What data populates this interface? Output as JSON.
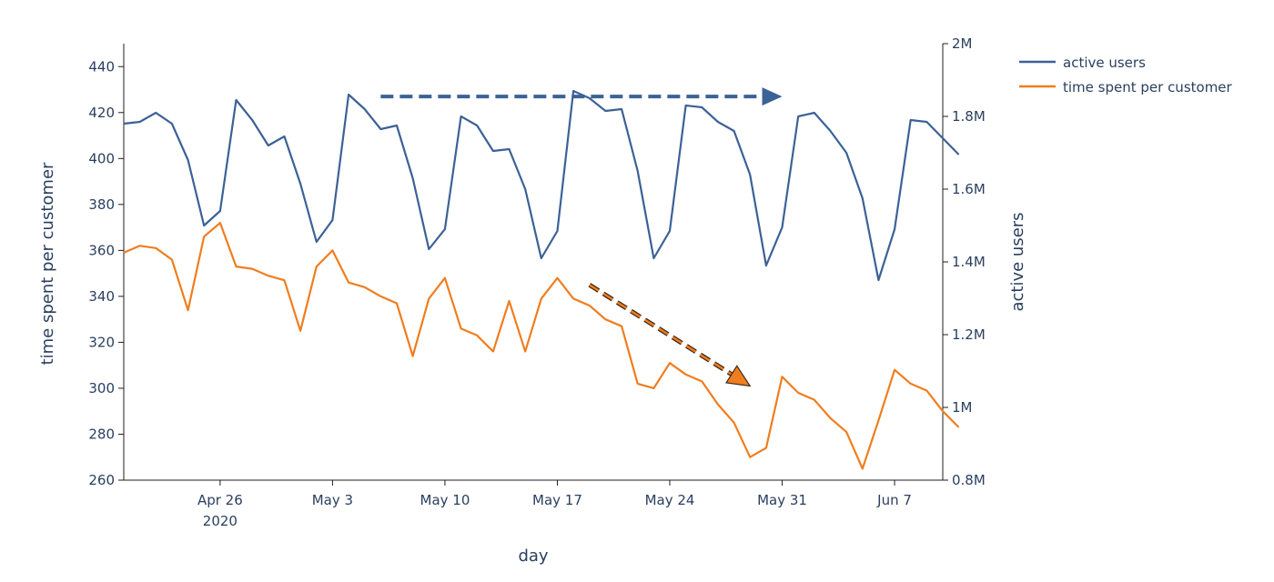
{
  "chart_data": {
    "type": "line",
    "xlabel": "day",
    "ylabel_left": "time spent per customer",
    "ylabel_right": "active users",
    "x_range": [
      "2020-04-20",
      "2020-06-10"
    ],
    "x_ticks": [
      {
        "date": "2020-04-26",
        "label": "Apr 26",
        "sublabel": "2020"
      },
      {
        "date": "2020-05-03",
        "label": "May 3",
        "sublabel": ""
      },
      {
        "date": "2020-05-10",
        "label": "May 10",
        "sublabel": ""
      },
      {
        "date": "2020-05-17",
        "label": "May 17",
        "sublabel": ""
      },
      {
        "date": "2020-05-24",
        "label": "May 24",
        "sublabel": ""
      },
      {
        "date": "2020-05-31",
        "label": "May 31",
        "sublabel": ""
      },
      {
        "date": "2020-06-07",
        "label": "Jun 7",
        "sublabel": ""
      }
    ],
    "y_left_range": [
      260,
      450
    ],
    "y_left_ticks": [
      260,
      280,
      300,
      320,
      340,
      360,
      380,
      400,
      420,
      440
    ],
    "y_right_range": [
      800000,
      2000000
    ],
    "y_right_ticks": [
      {
        "value": 800000,
        "label": "0.8M"
      },
      {
        "value": 1000000,
        "label": "1M"
      },
      {
        "value": 1200000,
        "label": "1.2M"
      },
      {
        "value": 1400000,
        "label": "1.4M"
      },
      {
        "value": 1600000,
        "label": "1.6M"
      },
      {
        "value": 1800000,
        "label": "1.8M"
      },
      {
        "value": 2000000,
        "label": "2M"
      }
    ],
    "grid": false,
    "legend_position": "top-right",
    "start_date": "2020-04-20",
    "series": [
      {
        "name": "active users",
        "axis": "right",
        "color": "#3c6196",
        "values": [
          1780000,
          1785000,
          1810000,
          1780000,
          1680000,
          1500000,
          1540000,
          1845000,
          1790000,
          1720000,
          1745000,
          1615000,
          1455000,
          1515000,
          1860000,
          1820000,
          1765000,
          1775000,
          1630000,
          1435000,
          1490000,
          1800000,
          1775000,
          1705000,
          1710000,
          1600000,
          1410000,
          1485000,
          1870000,
          1850000,
          1815000,
          1820000,
          1650000,
          1410000,
          1485000,
          1830000,
          1825000,
          1785000,
          1760000,
          1640000,
          1390000,
          1495000,
          1800000,
          1810000,
          1760000,
          1700000,
          1575000,
          1350000,
          1490000,
          1790000,
          1785000,
          1740000,
          1695000
        ]
      },
      {
        "name": "time spent per customer",
        "axis": "left",
        "color": "#f07d1e",
        "values": [
          359,
          362,
          361,
          356,
          334,
          366,
          372,
          353,
          352,
          349,
          347,
          325,
          353,
          360,
          346,
          344,
          340,
          337,
          314,
          339,
          348,
          326,
          323,
          316,
          338,
          316,
          339,
          348,
          339,
          336,
          330,
          327,
          302,
          300,
          311,
          306,
          303,
          293,
          285,
          270,
          274,
          305,
          298,
          295,
          287,
          281,
          265,
          286,
          308,
          302,
          299,
          290,
          283
        ]
      }
    ],
    "annotations": [
      {
        "kind": "arrow",
        "color": "#3c6196",
        "from": [
          "2020-05-06",
          427
        ],
        "to": [
          "2020-05-31",
          427
        ]
      },
      {
        "kind": "arrow",
        "color": "#f07d1e",
        "from": [
          "2020-05-19",
          345
        ],
        "to": [
          "2020-05-29",
          301
        ]
      }
    ]
  }
}
